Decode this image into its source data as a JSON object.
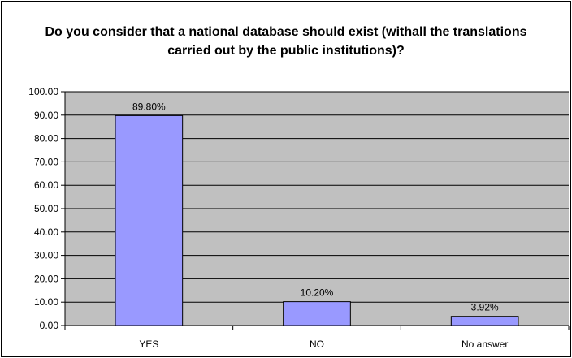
{
  "chart_data": {
    "type": "bar",
    "title": "Do you consider that a national database should exist (withall the translations carried out by the public institutions)?",
    "xlabel": "",
    "ylabel": "",
    "categories": [
      "YES",
      "NO",
      "No answer"
    ],
    "values": [
      89.8,
      10.2,
      3.92
    ],
    "value_labels": [
      "89.80%",
      "10.20%",
      "3.92%"
    ],
    "ylim": [
      0,
      100
    ],
    "yticks": [
      0,
      10,
      20,
      30,
      40,
      50,
      60,
      70,
      80,
      90,
      100
    ],
    "ytick_labels": [
      "0.00",
      "10.00",
      "20.00",
      "30.00",
      "40.00",
      "50.00",
      "60.00",
      "70.00",
      "80.00",
      "90.00",
      "100.00"
    ],
    "grid": true,
    "legend": "none",
    "colors": {
      "bar_fill": "#9999ff",
      "plot_background": "#c0c0c0",
      "gridline": "#000000"
    }
  }
}
